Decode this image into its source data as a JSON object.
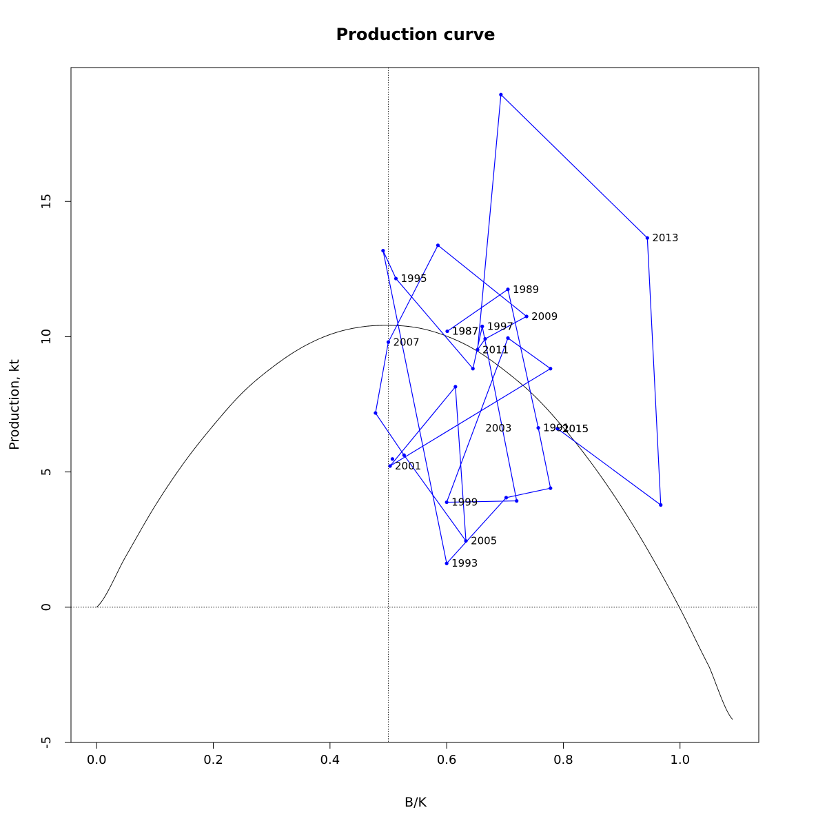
{
  "chart_data": {
    "type": "line",
    "title": "Production curve",
    "xlabel": "B/K",
    "ylabel": "Production, kt",
    "xlim": [
      -0.044,
      1.135
    ],
    "ylim": [
      -5.0,
      19.95
    ],
    "xticks": [
      0.0,
      0.2,
      0.4,
      0.6,
      0.8,
      1.0
    ],
    "xtick_labels": [
      "0.0",
      "0.2",
      "0.4",
      "0.6",
      "0.8",
      "1.0"
    ],
    "yticks": [
      -5,
      0,
      5,
      10,
      15
    ],
    "ytick_labels": [
      "-5",
      "0",
      "5",
      "10",
      "15"
    ],
    "reference_lines": {
      "vertical_x": 0.5,
      "horizontal_y": 0
    },
    "grid": false,
    "legend": "none",
    "curve": {
      "x": [
        0.0,
        0.05,
        0.1,
        0.15,
        0.2,
        0.25,
        0.3,
        0.35,
        0.4,
        0.45,
        0.5,
        0.55,
        0.6,
        0.65,
        0.7,
        0.75,
        0.8,
        0.85,
        0.9,
        0.95,
        1.0,
        1.05,
        1.09
      ],
      "y": [
        0.0,
        1.88,
        3.74,
        5.35,
        6.72,
        7.93,
        8.85,
        9.58,
        10.08,
        10.35,
        10.42,
        10.33,
        10.02,
        9.5,
        8.74,
        7.82,
        6.64,
        5.27,
        3.7,
        1.92,
        -0.05,
        -2.2,
        -4.15
      ],
      "color": "#000000"
    },
    "series": [
      {
        "x": [
          0.601,
          0.705,
          0.757,
          0.778,
          0.702,
          0.6,
          0.491,
          0.513,
          0.645,
          0.661,
          0.72,
          0.6,
          0.705,
          0.778,
          0.503,
          0.615,
          0.633,
          0.527,
          0.478,
          0.5,
          0.585,
          0.737,
          0.666,
          0.653,
          0.693,
          0.944,
          0.967,
          0.79,
          0.79
        ],
        "y": [
          10.2,
          11.75,
          6.63,
          4.4,
          4.05,
          1.62,
          13.18,
          12.15,
          8.82,
          10.38,
          3.93,
          3.88,
          9.95,
          8.82,
          5.22,
          8.15,
          2.45,
          5.62,
          7.18,
          9.8,
          13.38,
          10.75,
          9.92,
          9.52,
          18.95,
          13.65,
          3.78,
          6.6,
          6.6
        ],
        "labels": [
          "1987",
          "1989",
          "1991",
          "",
          "",
          "1993",
          "",
          "1995",
          "",
          "1997",
          "",
          "1999",
          "",
          "",
          "2001",
          "",
          "2005",
          "",
          "",
          "2007",
          "",
          "2009",
          "",
          "2011",
          "",
          "2013",
          "",
          "2015",
          "2015"
        ],
        "extra_points": [
          {
            "x": 0.507,
            "y": 5.48
          }
        ],
        "extra_labels": [
          {
            "text": "1987",
            "x": 0.601,
            "y": 10.2
          },
          {
            "text": "2003",
            "x": 0.658,
            "y": 6.62
          }
        ],
        "color": "#0000ff"
      }
    ]
  }
}
